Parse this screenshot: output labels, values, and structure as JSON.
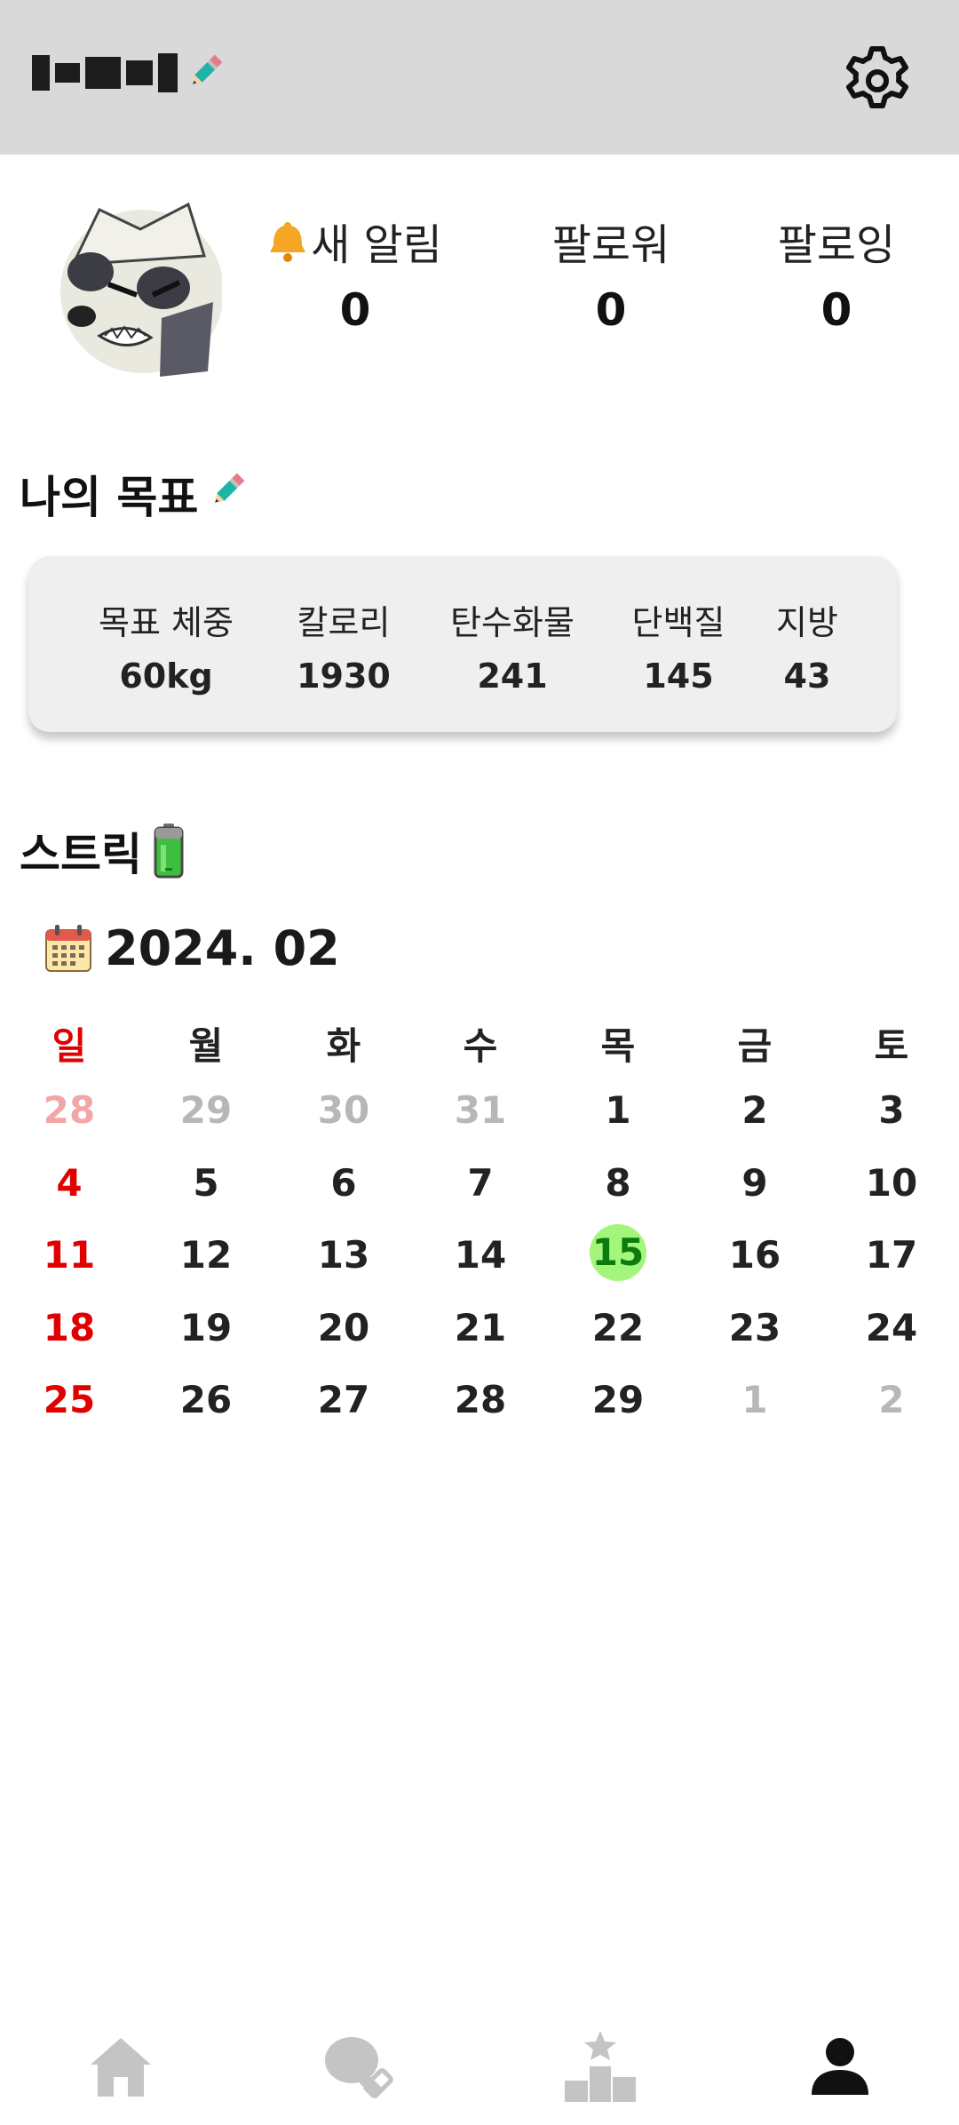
{
  "header": {
    "settings_icon": "gear-icon",
    "edit_icon": "pencil-icon"
  },
  "profile": {
    "stats": [
      {
        "label": "새 알림",
        "value": "0",
        "icon": "bell-icon"
      },
      {
        "label": "팔로워",
        "value": "0"
      },
      {
        "label": "팔로잉",
        "value": "0"
      }
    ]
  },
  "goals": {
    "title": "나의 목표",
    "items": [
      {
        "label": "목표 체중",
        "value": "60kg"
      },
      {
        "label": "칼로리",
        "value": "1930"
      },
      {
        "label": "탄수화물",
        "value": "241"
      },
      {
        "label": "단백질",
        "value": "145"
      },
      {
        "label": "지방",
        "value": "43"
      }
    ]
  },
  "streak": {
    "title": "스트릭",
    "icon": "battery-icon"
  },
  "calendar": {
    "icon": "calendar-icon",
    "month": "2024. 02",
    "weekdays": [
      "일",
      "월",
      "화",
      "수",
      "목",
      "금",
      "토"
    ],
    "weeks": [
      [
        "28",
        "29",
        "30",
        "31",
        "1",
        "2",
        "3"
      ],
      [
        "4",
        "5",
        "6",
        "7",
        "8",
        "9",
        "10"
      ],
      [
        "11",
        "12",
        "13",
        "14",
        "15",
        "16",
        "17"
      ],
      [
        "18",
        "19",
        "20",
        "21",
        "22",
        "23",
        "24"
      ],
      [
        "25",
        "26",
        "27",
        "28",
        "29",
        "1",
        "2"
      ]
    ],
    "today": "15",
    "colors": {
      "sunday": "#e00000",
      "today_bg": "#a4f57c",
      "today_text": "#0c7a0c",
      "other_month": "#b7b7b7"
    }
  },
  "nav": {
    "items": [
      {
        "icon": "home-icon",
        "active": false
      },
      {
        "icon": "meal-icon",
        "active": false
      },
      {
        "icon": "ranking-icon",
        "active": false
      },
      {
        "icon": "profile-icon",
        "active": true
      }
    ],
    "colors": {
      "inactive": "#c4c4c4",
      "active": "#111111"
    }
  }
}
